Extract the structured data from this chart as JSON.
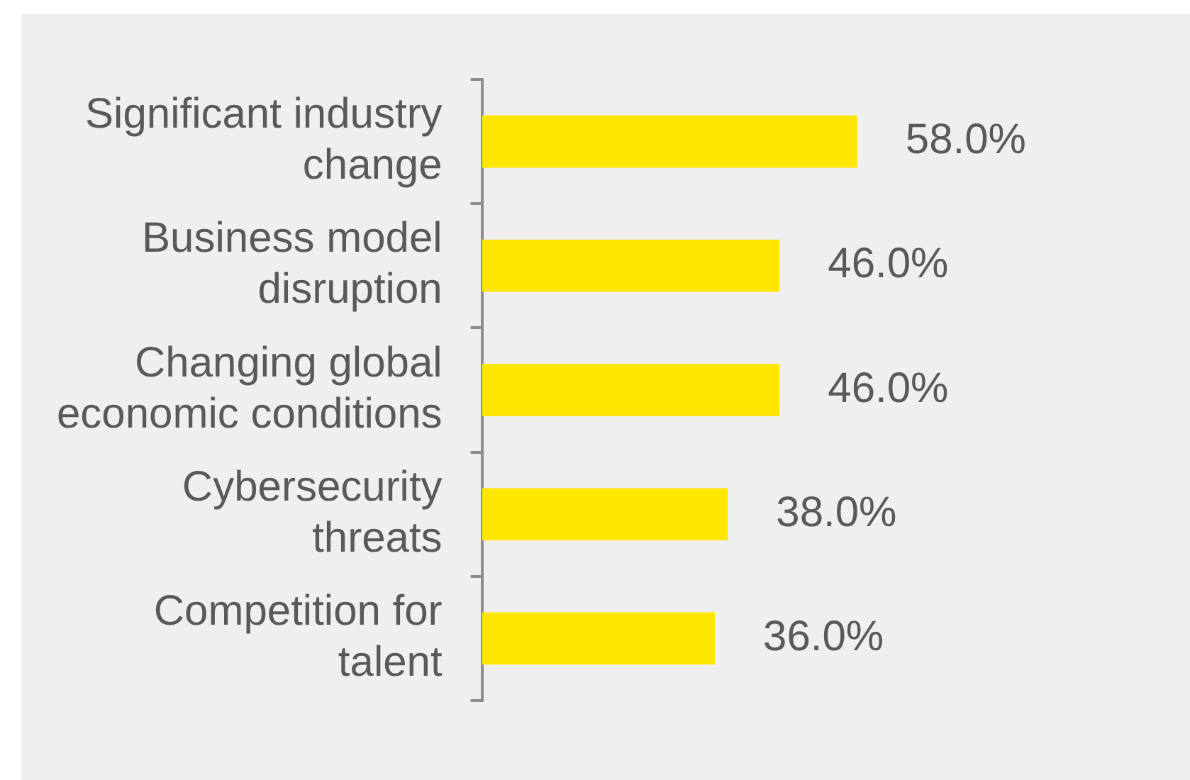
{
  "chart_data": {
    "type": "bar",
    "orientation": "horizontal",
    "categories": [
      "Significant industry change",
      "Business model disruption",
      "Changing global economic conditions",
      "Cybersecurity threats",
      "Competition for talent"
    ],
    "values": [
      58.0,
      46.0,
      46.0,
      38.0,
      36.0
    ],
    "value_labels": [
      "58.0%",
      "46.0%",
      "46.0%",
      "38.0%",
      "36.0%"
    ],
    "color": "#ffe600",
    "legend": false,
    "tick_labels": "y"
  }
}
